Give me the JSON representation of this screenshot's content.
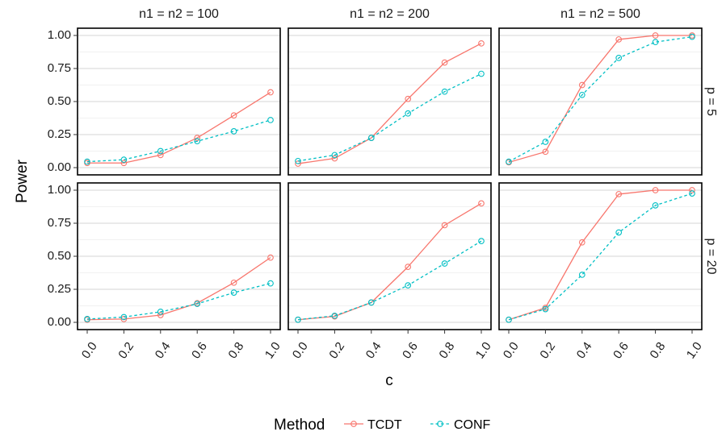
{
  "chart_data": {
    "type": "line",
    "xlabel": "c",
    "ylabel": "Power",
    "x": [
      0.0,
      0.2,
      0.4,
      0.6,
      0.8,
      1.0
    ],
    "x_tick_labels": [
      "0.0",
      "0.2",
      "0.4",
      "0.6",
      "0.8",
      "1.0"
    ],
    "ylim": [
      0,
      1
    ],
    "y_ticks": [
      0.0,
      0.25,
      0.5,
      0.75,
      1.0
    ],
    "y_tick_labels": [
      "0.00",
      "0.25",
      "0.50",
      "0.75",
      "1.00"
    ],
    "grid": true,
    "facet_columns": [
      "n1 = n2 = 100",
      "n1 = n2 = 200",
      "n1 = n2 = 500"
    ],
    "facet_rows": [
      "p = 5",
      "p = 20"
    ],
    "legend": {
      "title": "Method",
      "position": "bottom",
      "entries": [
        {
          "name": "TCDT",
          "color": "#F8766D",
          "linestyle": "solid"
        },
        {
          "name": "CONF",
          "color": "#00BFC4",
          "linestyle": "dashed"
        }
      ]
    },
    "panels": [
      {
        "row": 0,
        "col": 0,
        "series": [
          {
            "name": "TCDT",
            "values": [
              0.035,
              0.035,
              0.095,
              0.225,
              0.395,
              0.57
            ]
          },
          {
            "name": "CONF",
            "values": [
              0.045,
              0.06,
              0.125,
              0.2,
              0.275,
              0.36
            ]
          }
        ]
      },
      {
        "row": 0,
        "col": 1,
        "series": [
          {
            "name": "TCDT",
            "values": [
              0.03,
              0.07,
              0.225,
              0.52,
              0.795,
              0.94
            ]
          },
          {
            "name": "CONF",
            "values": [
              0.05,
              0.095,
              0.225,
              0.41,
              0.575,
              0.71
            ]
          }
        ]
      },
      {
        "row": 0,
        "col": 2,
        "series": [
          {
            "name": "TCDT",
            "values": [
              0.04,
              0.12,
              0.625,
              0.97,
              1.0,
              1.0
            ]
          },
          {
            "name": "CONF",
            "values": [
              0.045,
              0.195,
              0.55,
              0.83,
              0.95,
              0.99
            ]
          }
        ]
      },
      {
        "row": 1,
        "col": 0,
        "series": [
          {
            "name": "TCDT",
            "values": [
              0.02,
              0.025,
              0.055,
              0.145,
              0.3,
              0.49
            ]
          },
          {
            "name": "CONF",
            "values": [
              0.025,
              0.04,
              0.08,
              0.14,
              0.225,
              0.295
            ]
          }
        ]
      },
      {
        "row": 1,
        "col": 1,
        "series": [
          {
            "name": "TCDT",
            "values": [
              0.02,
              0.045,
              0.15,
              0.42,
              0.735,
              0.9
            ]
          },
          {
            "name": "CONF",
            "values": [
              0.02,
              0.05,
              0.15,
              0.28,
              0.445,
              0.615
            ]
          }
        ]
      },
      {
        "row": 1,
        "col": 2,
        "series": [
          {
            "name": "TCDT",
            "values": [
              0.02,
              0.11,
              0.605,
              0.97,
              1.0,
              1.0
            ]
          },
          {
            "name": "CONF",
            "values": [
              0.02,
              0.1,
              0.36,
              0.68,
              0.885,
              0.975
            ]
          }
        ]
      }
    ]
  }
}
